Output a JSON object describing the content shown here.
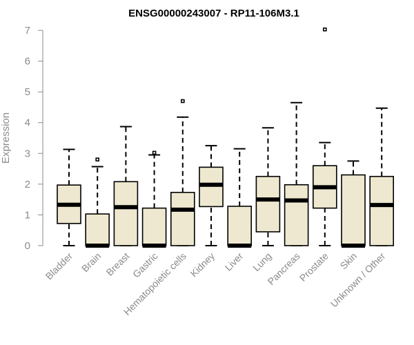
{
  "chart_data": {
    "type": "box",
    "title": "ENSG00000243007 - RP11-106M3.1",
    "ylabel": "Expression",
    "xlabel": "",
    "ylim": [
      0,
      7
    ],
    "yticks": [
      0,
      1,
      2,
      3,
      4,
      5,
      6,
      7
    ],
    "box_color": "#EDE8CF",
    "categories": [
      "Bladder",
      "Brain",
      "Breast",
      "Gastric",
      "Hematopoietic cells",
      "Kidney",
      "Liver",
      "Lung",
      "Pancreas",
      "Prostate",
      "Skin",
      "Unknown / Other"
    ],
    "boxes": [
      {
        "category": "Bladder",
        "min": 0,
        "q1": 0.72,
        "median": 1.33,
        "q3": 1.97,
        "max": 3.13,
        "outliers": []
      },
      {
        "category": "Brain",
        "min": 0,
        "q1": 0,
        "median": 0,
        "q3": 1.03,
        "max": 2.57,
        "outliers": [
          2.8
        ]
      },
      {
        "category": "Breast",
        "min": 0,
        "q1": 0,
        "median": 1.25,
        "q3": 2.08,
        "max": 3.87,
        "outliers": []
      },
      {
        "category": "Gastric",
        "min": 0,
        "q1": 0,
        "median": 0,
        "q3": 1.22,
        "max": 2.95,
        "outliers": [
          3.02
        ]
      },
      {
        "category": "Hematopoietic cells",
        "min": 0,
        "q1": 0,
        "median": 1.17,
        "q3": 1.73,
        "max": 4.18,
        "outliers": [
          4.7
        ]
      },
      {
        "category": "Kidney",
        "min": 0,
        "q1": 1.27,
        "median": 1.98,
        "q3": 2.55,
        "max": 3.25,
        "outliers": []
      },
      {
        "category": "Liver",
        "min": 0,
        "q1": 0,
        "median": 0,
        "q3": 1.28,
        "max": 3.15,
        "outliers": []
      },
      {
        "category": "Lung",
        "min": 0,
        "q1": 0.45,
        "median": 1.5,
        "q3": 2.25,
        "max": 3.83,
        "outliers": []
      },
      {
        "category": "Pancreas",
        "min": 0,
        "q1": 0,
        "median": 1.47,
        "q3": 1.98,
        "max": 4.65,
        "outliers": []
      },
      {
        "category": "Prostate",
        "min": 0,
        "q1": 1.22,
        "median": 1.9,
        "q3": 2.6,
        "max": 3.35,
        "outliers": [
          7.03
        ]
      },
      {
        "category": "Skin",
        "min": 0,
        "q1": 0,
        "median": 0,
        "q3": 2.3,
        "max": 2.75,
        "outliers": []
      },
      {
        "category": "Unknown / Other",
        "min": 0,
        "q1": 0,
        "median": 1.32,
        "q3": 2.25,
        "max": 4.47,
        "outliers": []
      }
    ]
  }
}
